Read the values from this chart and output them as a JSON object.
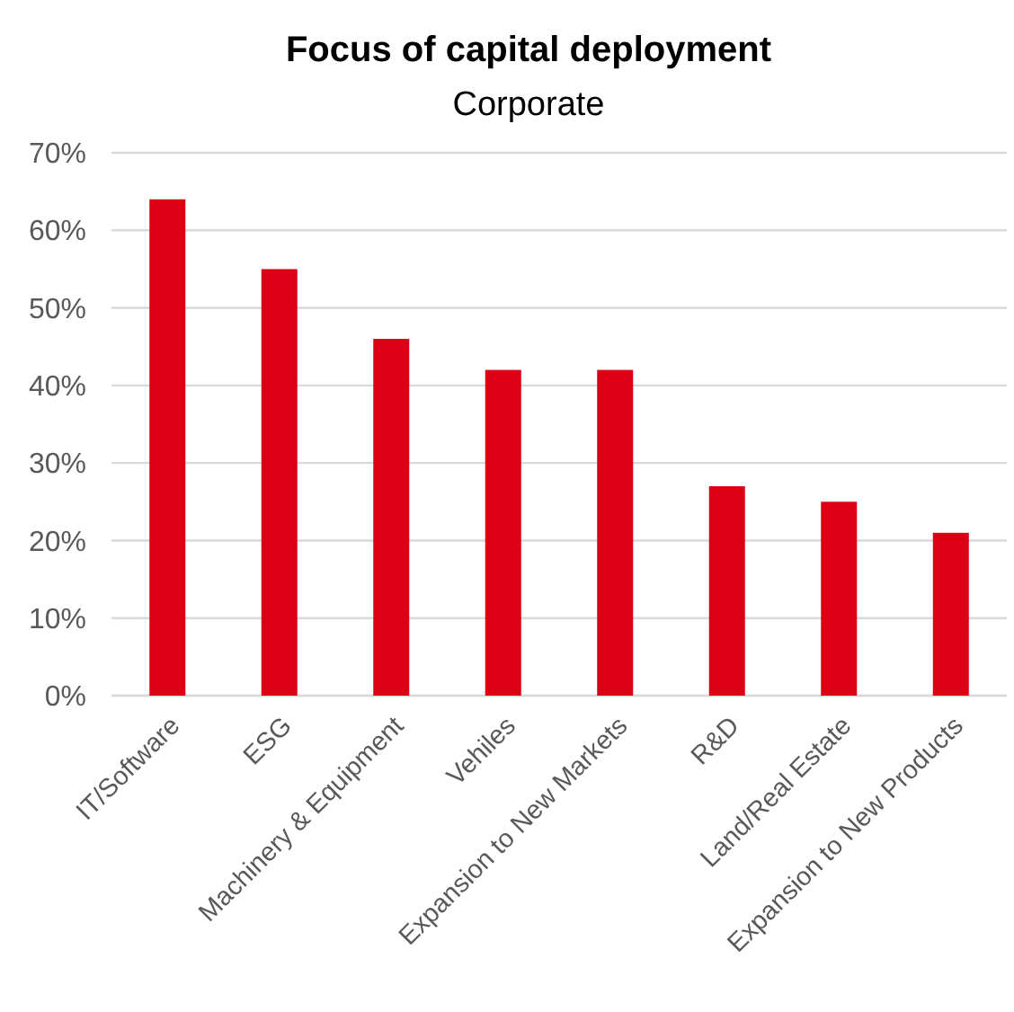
{
  "chart_data": {
    "type": "bar",
    "title": "Focus of capital deployment",
    "subtitle": "Corporate",
    "categories": [
      "IT/Software",
      "ESG",
      "Machinery & Equipment",
      "Vehiles",
      "Expansion to New Markets",
      "R&D",
      "Land/Real Estate",
      "Expansion to New Products"
    ],
    "values": [
      64,
      55,
      46,
      42,
      42,
      27,
      25,
      21
    ],
    "color": "#dc0014",
    "ylim": [
      0,
      70
    ],
    "yticks": [
      {
        "value": 0,
        "label": "0%"
      },
      {
        "value": 10,
        "label": "10%"
      },
      {
        "value": 20,
        "label": "20%"
      },
      {
        "value": 30,
        "label": "30%"
      },
      {
        "value": 40,
        "label": "40%"
      },
      {
        "value": 50,
        "label": "50%"
      },
      {
        "value": 60,
        "label": "60%"
      },
      {
        "value": 70,
        "label": "70%"
      }
    ],
    "grid": true
  }
}
